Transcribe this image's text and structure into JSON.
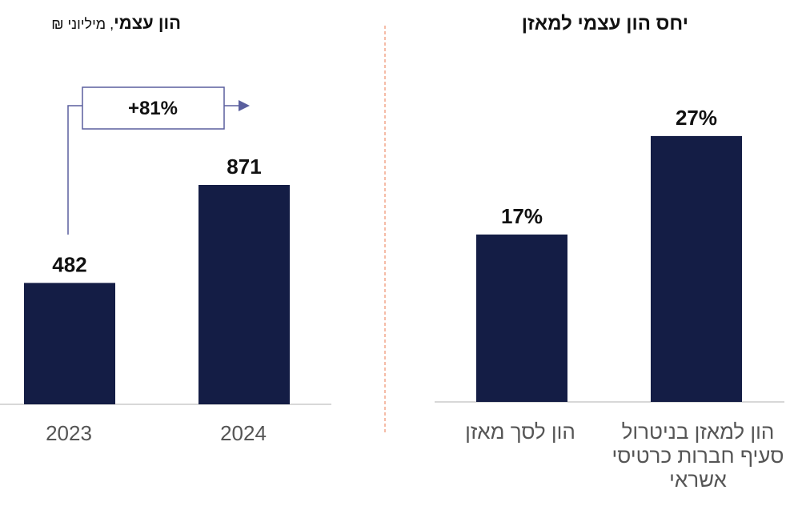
{
  "left_panel": {
    "title_bold": "הון עצמי",
    "title_rest": ", מיליוני ₪",
    "growth_label": "+81%"
  },
  "right_panel": {
    "title": "יחס הון עצמי למאזן"
  },
  "colors": {
    "bar": "#141d45",
    "arrow": "#5a5f9e",
    "divider": "#f2a58a",
    "axis": "#cccccc"
  },
  "chart_data": [
    {
      "type": "bar",
      "title": "הון עצמי, מיליוני ₪",
      "categories": [
        "2023",
        "2024"
      ],
      "values": [
        482,
        871
      ],
      "value_labels": [
        "482",
        "871"
      ],
      "annotation": "+81%"
    },
    {
      "type": "bar",
      "title": "יחס הון עצמי למאזן",
      "categories": [
        "הון לסך מאזן",
        "הון למאזן בניטרול סעיף חברות כרטיסי אשראי"
      ],
      "values": [
        17,
        27
      ],
      "value_labels": [
        "17%",
        "27%"
      ],
      "unit": "%"
    }
  ]
}
